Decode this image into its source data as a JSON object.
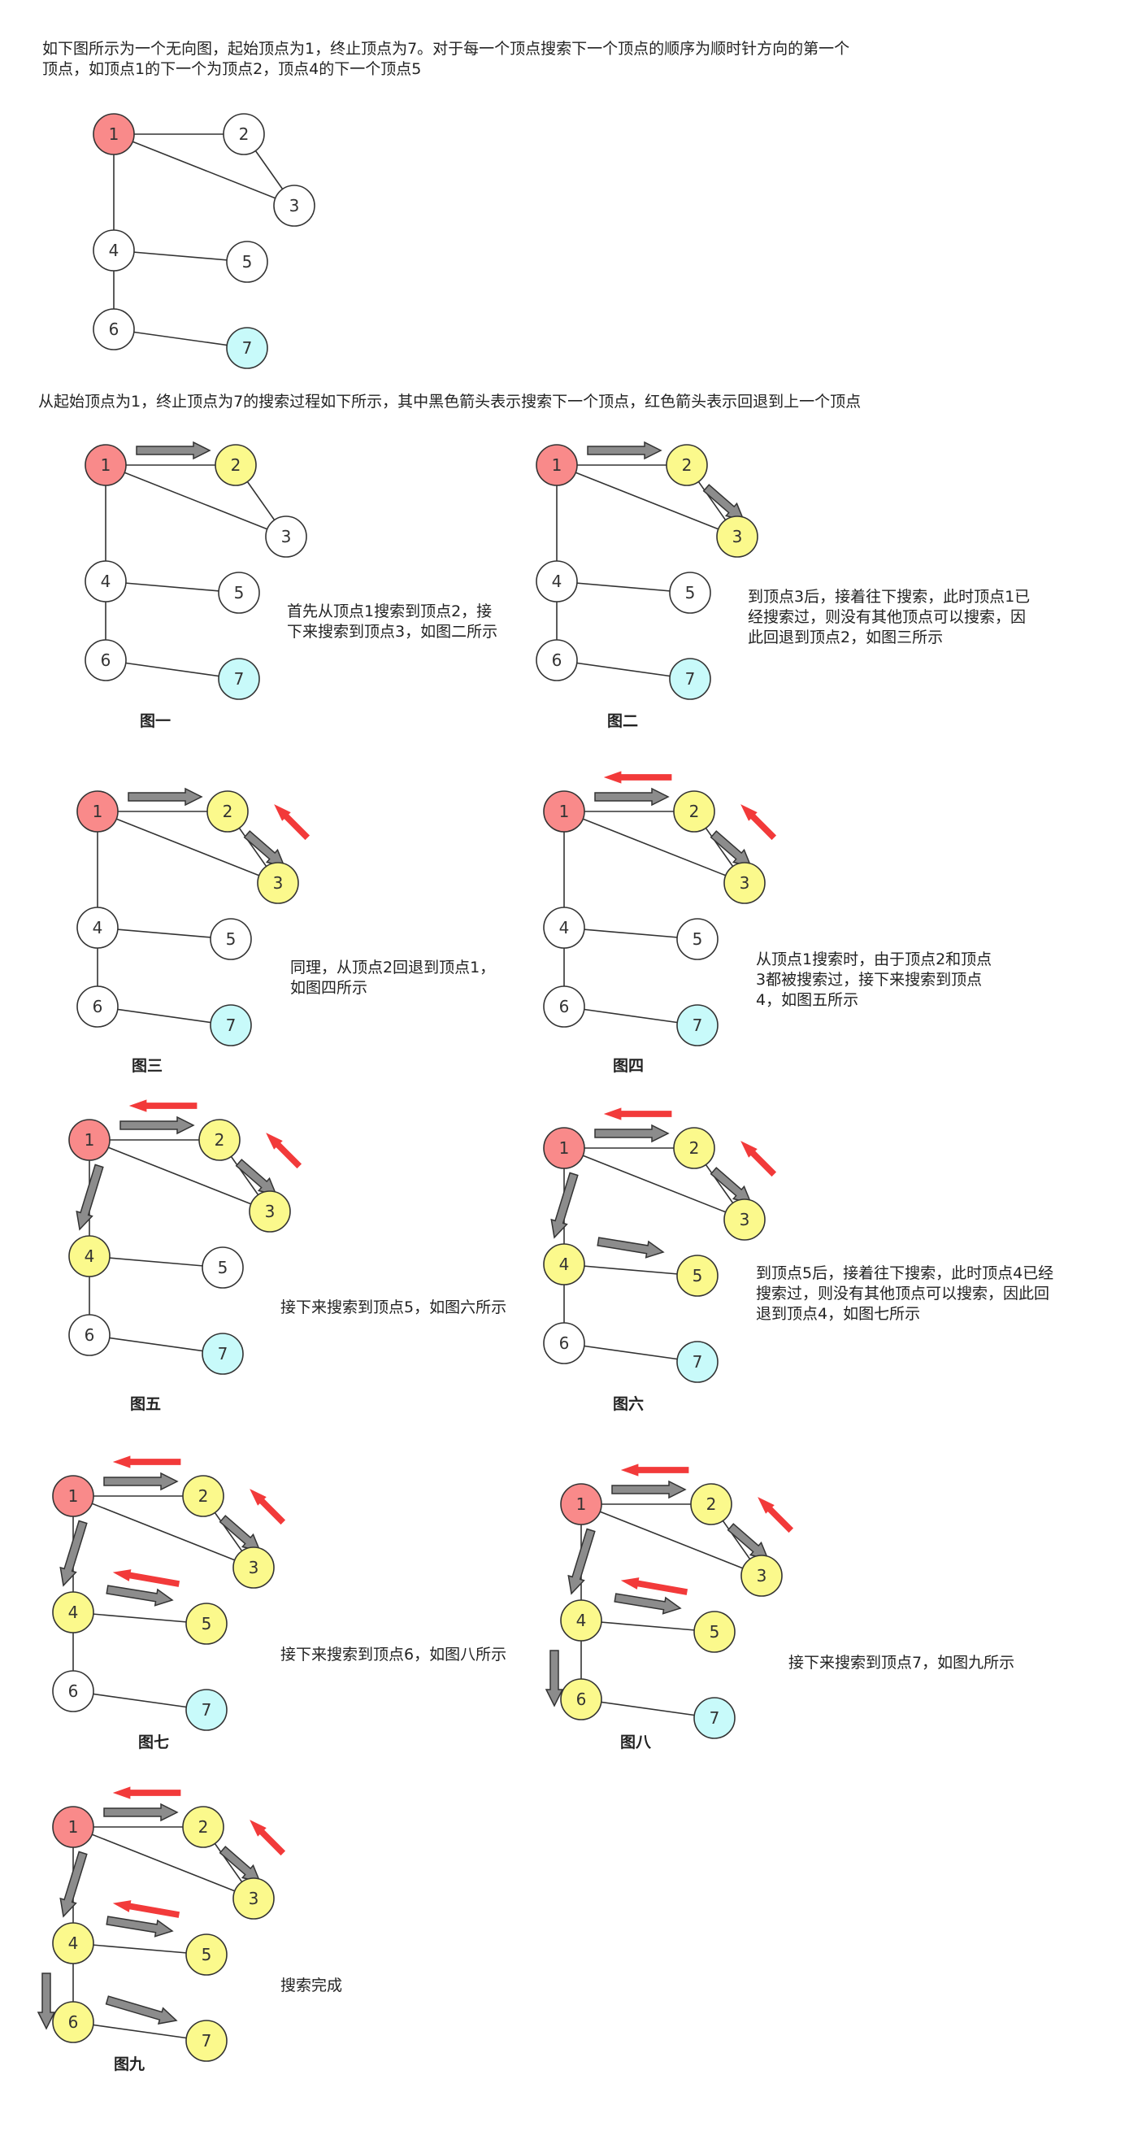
{
  "intro_text": {
    "line1": "如下图所示为一个无向图，起始顶点为1，终止顶点为7。对于每一个顶点搜索下一个顶点的顺序为顺时针方向的第一个",
    "line2": "顶点，如顶点1的下一个为顶点2，顶点4的下一个顶点5"
  },
  "search_text": "从起始顶点为1，终止顶点为7的搜索过程如下所示，其中黑色箭头表示搜索下一个顶点，红色箭头表示回退到上一个顶点",
  "colors": {
    "start": "#f98a8a",
    "end": "#c8fafa",
    "visited": "#fbf98c",
    "unvisited": "#ffffff",
    "edge": "#333333",
    "search_arrow": "#8c8c8c",
    "back_arrow": "#f23a3a"
  },
  "graph": {
    "nodes": [
      "1",
      "2",
      "3",
      "4",
      "5",
      "6",
      "7"
    ],
    "edges": [
      [
        "1",
        "2"
      ],
      [
        "1",
        "3"
      ],
      [
        "2",
        "3"
      ],
      [
        "1",
        "4"
      ],
      [
        "4",
        "5"
      ],
      [
        "4",
        "6"
      ],
      [
        "6",
        "7"
      ]
    ]
  },
  "panels": [
    {
      "caption": "图一",
      "desc": [
        "首先从顶点1搜索到顶点2，接",
        "下来搜索到顶点3，如图二所示"
      ],
      "visited": [
        "2"
      ],
      "search_arrows": [
        "1-2"
      ],
      "back_arrows": []
    },
    {
      "caption": "图二",
      "desc": [
        "到顶点3后，接着往下搜索，此时顶点1已",
        "经搜索过，则没有其他顶点可以搜索，因",
        "此回退到顶点2，如图三所示"
      ],
      "visited": [
        "2",
        "3"
      ],
      "search_arrows": [
        "1-2",
        "2-3"
      ],
      "back_arrows": []
    },
    {
      "caption": "图三",
      "desc": [
        "同理，从顶点2回退到顶点1，",
        "如图四所示"
      ],
      "visited": [
        "2",
        "3"
      ],
      "search_arrows": [
        "1-2",
        "2-3"
      ],
      "back_arrows": [
        "3-2"
      ]
    },
    {
      "caption": "图四",
      "desc": [
        "从顶点1搜索时，由于顶点2和顶点",
        "3都被搜索过，接下来搜索到顶点",
        "4，如图五所示"
      ],
      "visited": [
        "2",
        "3"
      ],
      "search_arrows": [
        "1-2",
        "2-3"
      ],
      "back_arrows": [
        "3-2",
        "2-1"
      ]
    },
    {
      "caption": "图五",
      "desc": [
        "接下来搜索到顶点5，如图六所示"
      ],
      "visited": [
        "2",
        "3",
        "4"
      ],
      "search_arrows": [
        "1-2",
        "2-3",
        "1-4"
      ],
      "back_arrows": [
        "3-2",
        "2-1"
      ]
    },
    {
      "caption": "图六",
      "desc": [
        "到顶点5后，接着往下搜索，此时顶点4已经",
        "搜索过，则没有其他顶点可以搜索，因此回",
        "退到顶点4，如图七所示"
      ],
      "visited": [
        "2",
        "3",
        "4",
        "5"
      ],
      "search_arrows": [
        "1-2",
        "2-3",
        "1-4",
        "4-5"
      ],
      "back_arrows": [
        "3-2",
        "2-1"
      ]
    },
    {
      "caption": "图七",
      "desc": [
        "接下来搜索到顶点6，如图八所示"
      ],
      "visited": [
        "2",
        "3",
        "4",
        "5"
      ],
      "search_arrows": [
        "1-2",
        "2-3",
        "1-4",
        "4-5"
      ],
      "back_arrows": [
        "3-2",
        "2-1",
        "5-4"
      ]
    },
    {
      "caption": "图八",
      "desc": [
        "接下来搜索到顶点7，如图九所示"
      ],
      "visited": [
        "2",
        "3",
        "4",
        "5",
        "6"
      ],
      "search_arrows": [
        "1-2",
        "2-3",
        "1-4",
        "4-5",
        "4-6"
      ],
      "back_arrows": [
        "3-2",
        "2-1",
        "5-4"
      ]
    },
    {
      "caption": "图九",
      "desc": [
        "搜索完成"
      ],
      "visited": [
        "2",
        "3",
        "4",
        "5",
        "6",
        "7"
      ],
      "search_arrows": [
        "1-2",
        "2-3",
        "1-4",
        "4-5",
        "4-6",
        "6-7"
      ],
      "back_arrows": [
        "3-2",
        "2-1",
        "5-4"
      ]
    }
  ]
}
